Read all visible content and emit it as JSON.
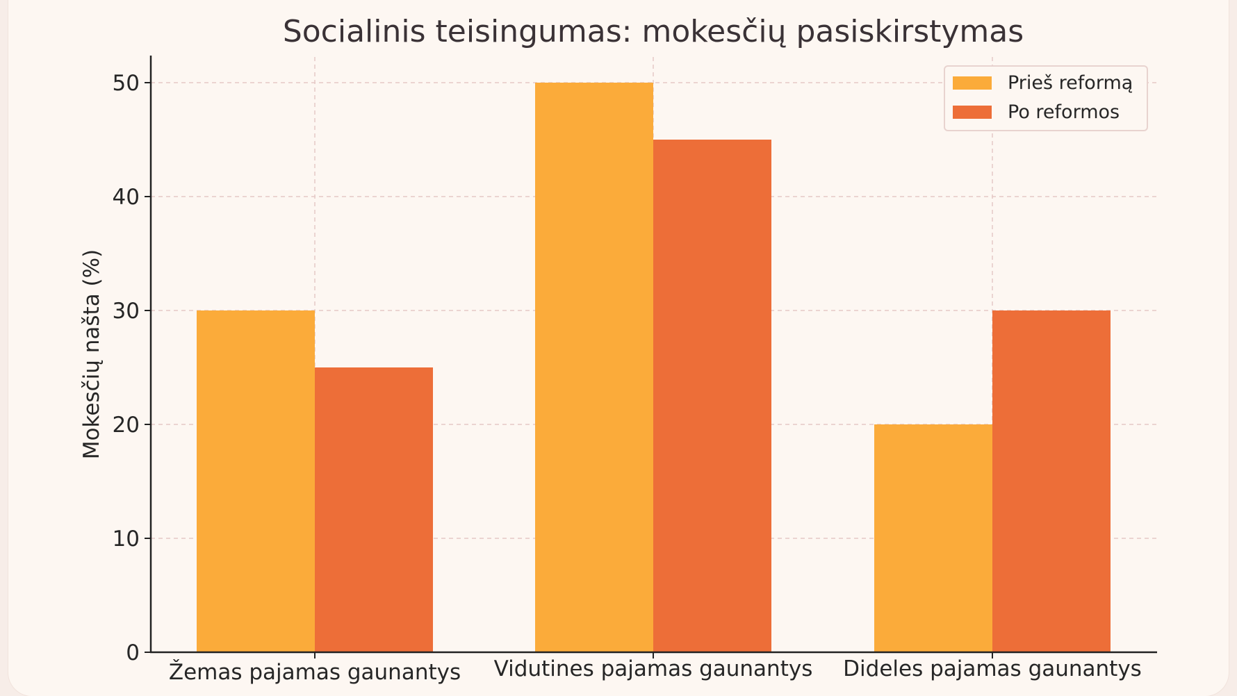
{
  "chart_data": {
    "type": "bar",
    "title": "Socialinis teisingumas: mokesčių pasiskirstymas",
    "xlabel": "",
    "ylabel": "Mokesčių našta (%)",
    "categories": [
      "Žemas pajamas gaunantys",
      "Vidutines pajamas gaunantys",
      "Dideles pajamas gaunantys"
    ],
    "series": [
      {
        "name": "Prieš reformą",
        "values": [
          30,
          50,
          20
        ],
        "color": "#fbab3a"
      },
      {
        "name": "Po reformos",
        "values": [
          25,
          45,
          30
        ],
        "color": "#ed6e38"
      }
    ],
    "ylim": [
      0,
      52.5
    ],
    "yticks": [
      0,
      10,
      20,
      30,
      40,
      50
    ],
    "grid": true,
    "legend_position": "top-right"
  }
}
